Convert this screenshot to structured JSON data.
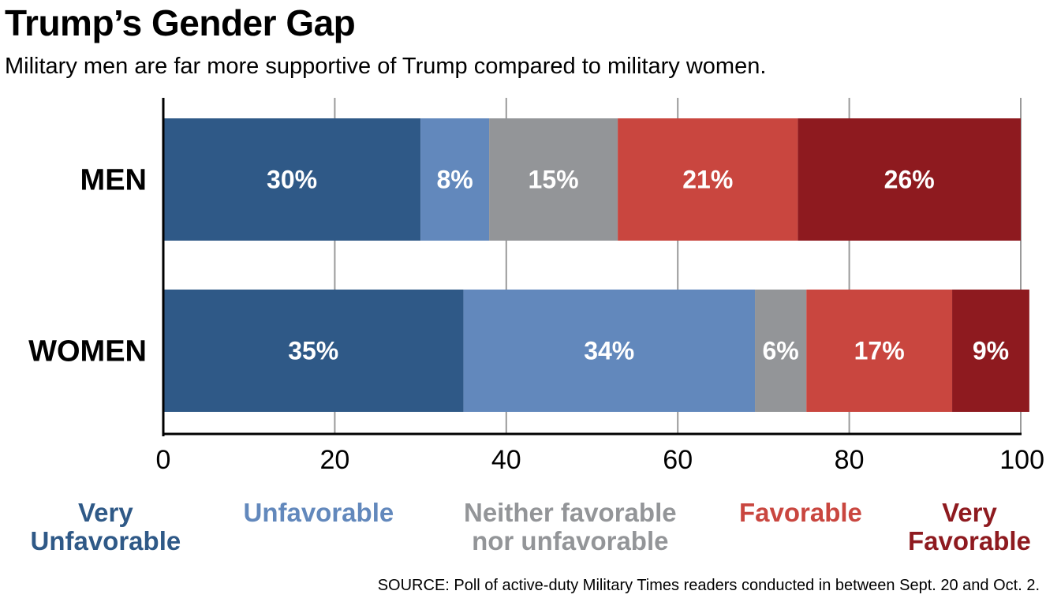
{
  "title": "Trump’s Gender Gap",
  "subtitle": "Military men are far more supportive of Trump compared to military women.",
  "source": "SOURCE: Poll of active-duty Military Times readers conducted in between Sept. 20 and Oct. 2.",
  "colors": {
    "very_unfavorable": "#2f5987",
    "unfavorable": "#6288bc",
    "neither": "#939598",
    "favorable": "#c9463f",
    "very_favorable": "#8e1a1f",
    "gridline": "#9a9a9a",
    "axis": "#000000"
  },
  "legend": [
    {
      "lines": [
        "Very",
        "Unfavorable"
      ],
      "color": "#2f5987"
    },
    {
      "lines": [
        "Unfavorable"
      ],
      "color": "#6288bc"
    },
    {
      "lines": [
        "Neither favorable",
        "nor unfavorable"
      ],
      "color": "#939598"
    },
    {
      "lines": [
        "Favorable"
      ],
      "color": "#c9463f"
    },
    {
      "lines": [
        "Very",
        "Favorable"
      ],
      "color": "#8e1a1f"
    }
  ],
  "chart_data": {
    "type": "bar",
    "orientation": "horizontal",
    "stacked": true,
    "categories": [
      "MEN",
      "WOMEN"
    ],
    "series": [
      {
        "key": "very_unfavorable",
        "values": [
          30,
          35
        ],
        "labels": [
          "30%",
          "35%"
        ]
      },
      {
        "key": "unfavorable",
        "values": [
          8,
          34
        ],
        "labels": [
          "8%",
          "34%"
        ]
      },
      {
        "key": "neither",
        "values": [
          15,
          6
        ],
        "labels": [
          "15%",
          "6%"
        ]
      },
      {
        "key": "favorable",
        "values": [
          21,
          17
        ],
        "labels": [
          "21%",
          "17%"
        ]
      },
      {
        "key": "very_favorable",
        "values": [
          26,
          9
        ],
        "labels": [
          "26%",
          "9%"
        ]
      }
    ],
    "xlim": [
      0,
      100
    ],
    "xticks": [
      0,
      20,
      40,
      60,
      80,
      100
    ],
    "tick_labels": [
      "0",
      "20",
      "40",
      "60",
      "80",
      "100"
    ],
    "grid": true
  }
}
